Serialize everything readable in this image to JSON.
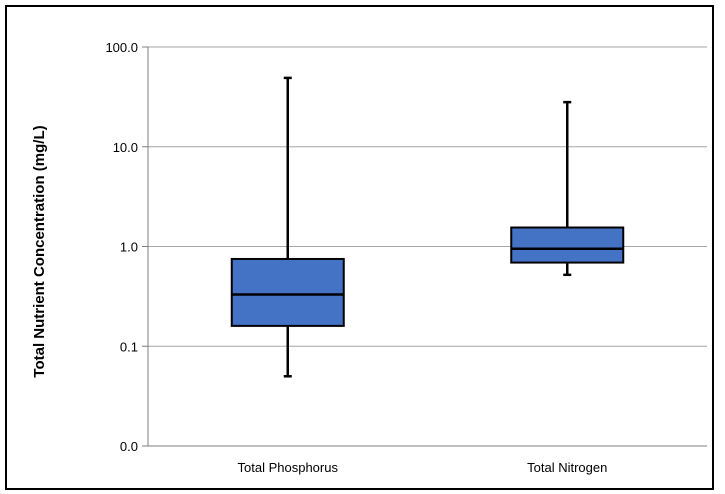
{
  "chart_data": {
    "type": "box",
    "ylabel": "Total Nutrient Concentration (mg/L)",
    "y_scale": "log",
    "ylim": [
      0.01,
      100
    ],
    "y_ticks": [
      {
        "value": 100,
        "label": "100.0"
      },
      {
        "value": 10,
        "label": "10.0"
      },
      {
        "value": 1,
        "label": "1.0"
      },
      {
        "value": 0.1,
        "label": "0.1"
      },
      {
        "value": 0.01,
        "label": "0.0"
      }
    ],
    "grid": true,
    "categories": [
      "Total Phosphorus",
      "Total Nitrogen"
    ],
    "boxes": [
      {
        "category": "Total Phosphorus",
        "min": 0.05,
        "q1": 0.16,
        "median": 0.33,
        "q3": 0.75,
        "max": 49
      },
      {
        "category": "Total Nitrogen",
        "min": 0.52,
        "q1": 0.69,
        "median": 0.95,
        "q3": 1.55,
        "max": 28
      }
    ],
    "colors": {
      "box_fill": "#4472C4",
      "box_stroke": "#000000",
      "grid": "#a6a6a6",
      "axis": "#7f7f7f"
    }
  }
}
